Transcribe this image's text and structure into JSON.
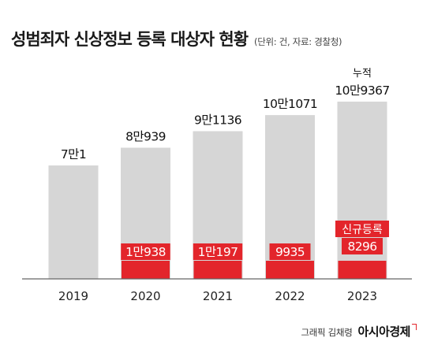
{
  "header": {
    "title": "성범죄자 신상정보 등록 대상자 현황",
    "unit_note": "(단위: 건, 자료: 경찰청)"
  },
  "footer": {
    "credit": "그래픽 김채령",
    "brand": "아시아경제"
  },
  "colors": {
    "total_bar": "#d6d6d6",
    "new_bar": "#e3252b",
    "baseline": "#666666",
    "text": "#111111",
    "new_label_text": "#ffffff"
  },
  "chart_data": {
    "type": "bar",
    "categories": [
      "2019",
      "2020",
      "2021",
      "2022",
      "2023"
    ],
    "series": [
      {
        "name": "누적",
        "values": [
          70001,
          80939,
          91136,
          101071,
          109367
        ]
      },
      {
        "name": "신규등록",
        "values": [
          null,
          10938,
          10197,
          9935,
          8296
        ]
      }
    ],
    "total_labels": [
      "7만1",
      "8만939",
      "9만1136",
      "10만1071",
      "10만9367"
    ],
    "new_labels": [
      "",
      "1만938",
      "1만197",
      "9935",
      "8296"
    ],
    "annotations": {
      "cumulative": "누적",
      "new_registration": "신규등록"
    },
    "grid": false,
    "legend": "none"
  }
}
